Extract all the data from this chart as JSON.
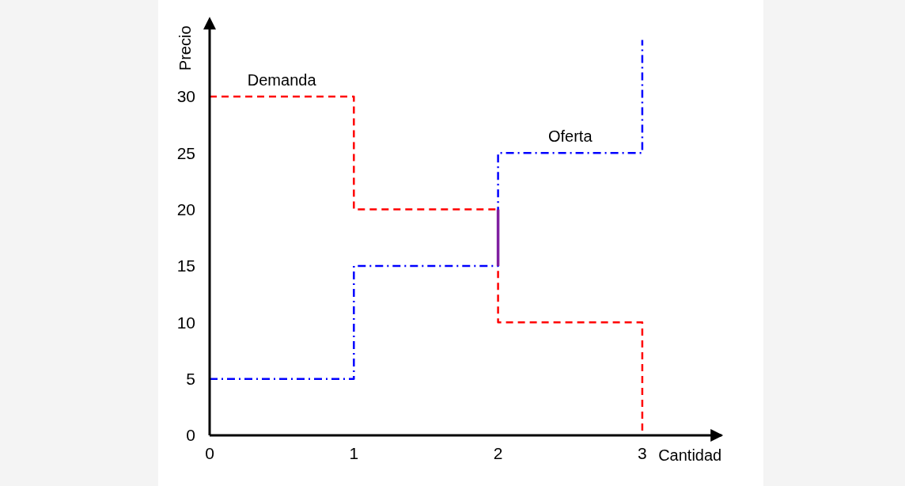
{
  "chart_data": {
    "type": "step",
    "xlabel": "Cantidad",
    "ylabel": "Precio",
    "xlim": [
      0,
      3.55
    ],
    "ylim": [
      0,
      36.5
    ],
    "xticks": [
      0,
      1,
      2,
      3
    ],
    "yticks": [
      0,
      5,
      10,
      15,
      20,
      25,
      30
    ],
    "grid": false,
    "series": [
      {
        "name": "Demanda",
        "color": "#ff0000",
        "line_style": "dashed",
        "x": [
          0,
          1,
          2,
          3
        ],
        "values": [
          30,
          20,
          10,
          0
        ]
      },
      {
        "name": "Oferta",
        "color": "#0000ff",
        "line_style": "dashdot",
        "x": [
          0,
          1,
          2,
          3
        ],
        "values": [
          5,
          15,
          25,
          35
        ]
      },
      {
        "type": "line",
        "color": "#7f1fa0",
        "line_style": "solid",
        "x": [
          2,
          2
        ],
        "values": [
          15,
          20
        ]
      }
    ]
  }
}
